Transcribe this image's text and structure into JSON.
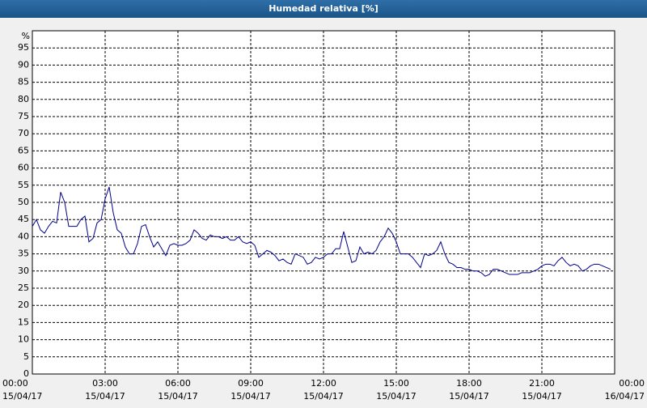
{
  "chart_data": {
    "type": "line",
    "title": "Humedad relativa [%]",
    "ylabel": "%",
    "xlim": [
      0,
      1440
    ],
    "ylim": [
      0,
      100
    ],
    "yticks": [
      0,
      5,
      10,
      15,
      20,
      25,
      30,
      35,
      40,
      45,
      50,
      55,
      60,
      65,
      70,
      75,
      80,
      85,
      90,
      95
    ],
    "xticks": [
      {
        "value": 0,
        "label": "00:00",
        "date": "15/04/17"
      },
      {
        "value": 180,
        "label": "03:00",
        "date": "15/04/17"
      },
      {
        "value": 360,
        "label": "06:00",
        "date": "15/04/17"
      },
      {
        "value": 540,
        "label": "09:00",
        "date": "15/04/17"
      },
      {
        "value": 720,
        "label": "12:00",
        "date": "15/04/17"
      },
      {
        "value": 900,
        "label": "15:00",
        "date": "15/04/17"
      },
      {
        "value": 1080,
        "label": "18:00",
        "date": "15/04/17"
      },
      {
        "value": 1260,
        "label": "21:00",
        "date": "15/04/17"
      },
      {
        "value": 1440,
        "label": "00:00",
        "date": "16/04/17"
      }
    ],
    "grid": true,
    "x": [
      0,
      10,
      20,
      30,
      40,
      50,
      60,
      70,
      80,
      90,
      100,
      110,
      120,
      130,
      140,
      150,
      160,
      170,
      180,
      190,
      200,
      210,
      220,
      230,
      240,
      250,
      260,
      270,
      280,
      290,
      300,
      310,
      320,
      330,
      340,
      350,
      360,
      370,
      380,
      390,
      400,
      410,
      420,
      430,
      440,
      450,
      460,
      470,
      480,
      490,
      500,
      510,
      520,
      530,
      540,
      550,
      560,
      570,
      580,
      590,
      600,
      610,
      620,
      630,
      640,
      650,
      660,
      670,
      680,
      690,
      700,
      710,
      720,
      730,
      740,
      750,
      760,
      770,
      780,
      790,
      800,
      810,
      820,
      830,
      840,
      850,
      860,
      870,
      880,
      890,
      900,
      910,
      920,
      930,
      940,
      950,
      960,
      970,
      980,
      990,
      1000,
      1010,
      1020,
      1030,
      1040,
      1050,
      1060,
      1070,
      1080,
      1090,
      1100,
      1110,
      1120,
      1130,
      1140,
      1150,
      1160,
      1170,
      1180,
      1190,
      1200,
      1210,
      1220,
      1230,
      1240,
      1250,
      1260,
      1270,
      1280,
      1290,
      1300,
      1310,
      1320,
      1330,
      1340,
      1350,
      1360,
      1370,
      1380,
      1390,
      1400,
      1410,
      1420,
      1430
    ],
    "series": [
      {
        "color": "#00008c",
        "values": [
          43,
          45,
          42,
          41,
          43,
          44.5,
          44,
          53,
          50,
          43,
          43,
          43,
          45,
          46,
          38.5,
          39.5,
          44,
          45,
          51,
          54.5,
          47,
          42,
          41,
          37,
          35,
          35,
          38,
          43,
          43.5,
          40,
          37,
          38.5,
          36.5,
          34.5,
          37.5,
          38,
          37.5,
          37.5,
          38,
          39,
          42,
          41,
          39.5,
          39,
          40.5,
          40,
          40,
          39.5,
          40,
          39,
          39,
          40,
          38.5,
          38,
          38.5,
          37.5,
          34,
          35,
          36,
          35.5,
          34.5,
          33,
          33.5,
          32.5,
          32,
          35,
          34.5,
          34,
          32,
          32.5,
          34,
          33.5,
          34,
          35,
          35,
          36.5,
          36.5,
          41.5,
          37,
          32.5,
          33,
          37,
          35,
          35.5,
          35,
          36,
          38.5,
          40,
          42.5,
          41,
          38.5,
          35,
          35,
          35,
          34,
          32.5,
          31,
          35,
          34.5,
          35,
          36,
          38.5,
          35,
          32.5,
          32,
          31,
          31,
          30.5,
          30.5,
          30,
          30,
          29.5,
          28.5,
          29,
          30.5,
          30.5,
          30,
          29.5,
          29,
          29,
          29,
          29.5,
          29.5,
          29.5,
          30,
          30.5,
          31.5,
          32,
          32,
          31.5,
          33,
          34,
          32.5,
          31.5,
          32,
          31.5,
          30,
          30.5,
          31.5,
          32,
          32,
          31.5,
          31,
          30.5
        ]
      }
    ]
  }
}
